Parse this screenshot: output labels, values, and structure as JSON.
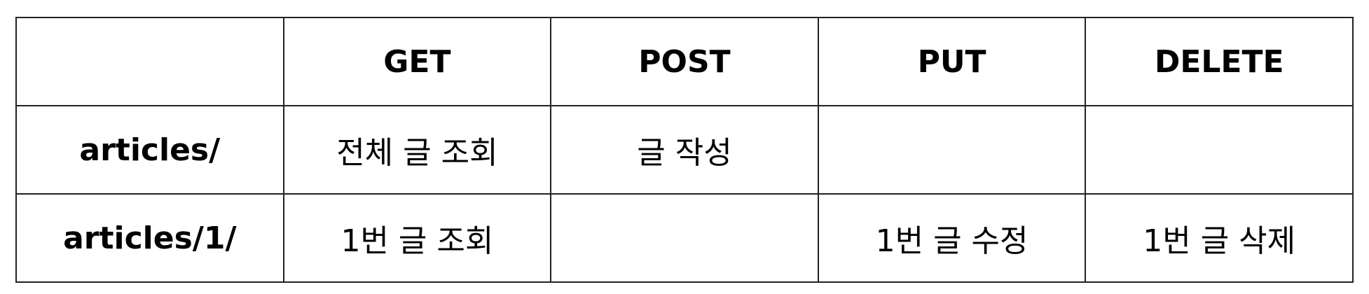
{
  "table": {
    "columns": [
      "",
      "GET",
      "POST",
      "PUT",
      "DELETE"
    ],
    "rows": [
      {
        "endpoint": "articles/",
        "cells": [
          "전체 글 조회",
          "글 작성",
          "",
          ""
        ]
      },
      {
        "endpoint": "articles/1/",
        "cells": [
          "1번 글 조회",
          "",
          "1번 글 수정",
          "1번 글 삭제"
        ]
      }
    ]
  }
}
